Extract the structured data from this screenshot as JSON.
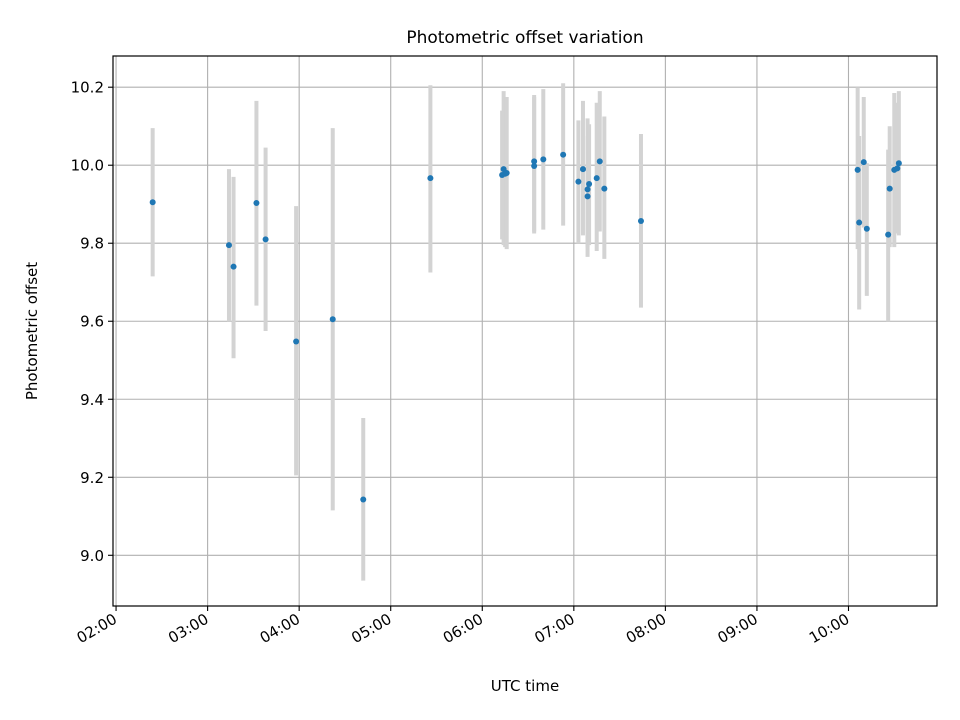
{
  "chart_data": {
    "type": "scatter",
    "title": "Photometric offset variation",
    "xlabel": "UTC time",
    "ylabel": "Photometric offset",
    "x_unit": "UTC time (HH:MM)",
    "xlim": [
      "01:58",
      "10:58"
    ],
    "ylim": [
      8.87,
      10.28
    ],
    "xticks": [
      "02:00",
      "03:00",
      "04:00",
      "05:00",
      "06:00",
      "07:00",
      "08:00",
      "09:00",
      "10:00"
    ],
    "yticks": [
      "9.0",
      "9.2",
      "9.4",
      "9.6",
      "9.8",
      "10.0",
      "10.2"
    ],
    "grid": true,
    "marker_color": "#1f77b4",
    "errorbar_color": "#d3d3d3",
    "points": [
      {
        "x": "02:24",
        "y": 9.905,
        "lo": 9.715,
        "hi": 10.095
      },
      {
        "x": "03:14",
        "y": 9.795,
        "lo": 9.6,
        "hi": 9.99
      },
      {
        "x": "03:17",
        "y": 9.74,
        "lo": 9.505,
        "hi": 9.97
      },
      {
        "x": "03:32",
        "y": 9.903,
        "lo": 9.64,
        "hi": 10.165
      },
      {
        "x": "03:38",
        "y": 9.81,
        "lo": 9.575,
        "hi": 10.045
      },
      {
        "x": "03:58",
        "y": 9.548,
        "lo": 9.205,
        "hi": 9.895
      },
      {
        "x": "04:22",
        "y": 9.605,
        "lo": 9.115,
        "hi": 10.095
      },
      {
        "x": "04:42",
        "y": 9.143,
        "lo": 8.935,
        "hi": 9.352
      },
      {
        "x": "05:26",
        "y": 9.967,
        "lo": 9.725,
        "hi": 10.205
      },
      {
        "x": "06:13",
        "y": 9.975,
        "lo": 9.81,
        "hi": 10.14
      },
      {
        "x": "06:14",
        "y": 9.99,
        "lo": 9.795,
        "hi": 10.19
      },
      {
        "x": "06:15",
        "y": 9.978,
        "lo": 9.79,
        "hi": 10.17
      },
      {
        "x": "06:16",
        "y": 9.98,
        "lo": 9.785,
        "hi": 10.175
      },
      {
        "x": "06:34",
        "y": 10.01,
        "lo": 9.825,
        "hi": 10.18
      },
      {
        "x": "06:34",
        "y": 9.998,
        "lo": 9.83,
        "hi": 10.175
      },
      {
        "x": "06:40",
        "y": 10.015,
        "lo": 9.835,
        "hi": 10.195
      },
      {
        "x": "06:53",
        "y": 10.027,
        "lo": 9.845,
        "hi": 10.21
      },
      {
        "x": "07:03",
        "y": 9.958,
        "lo": 9.8,
        "hi": 10.115
      },
      {
        "x": "07:06",
        "y": 9.99,
        "lo": 9.82,
        "hi": 10.165
      },
      {
        "x": "07:09",
        "y": 9.92,
        "lo": 9.765,
        "hi": 10.075
      },
      {
        "x": "07:09",
        "y": 9.938,
        "lo": 9.79,
        "hi": 10.12
      },
      {
        "x": "07:10",
        "y": 9.952,
        "lo": 9.795,
        "hi": 10.105
      },
      {
        "x": "07:15",
        "y": 9.967,
        "lo": 9.78,
        "hi": 10.16
      },
      {
        "x": "07:17",
        "y": 10.01,
        "lo": 9.83,
        "hi": 10.19
      },
      {
        "x": "07:20",
        "y": 9.94,
        "lo": 9.76,
        "hi": 10.125
      },
      {
        "x": "07:44",
        "y": 9.857,
        "lo": 9.635,
        "hi": 10.08
      },
      {
        "x": "10:06",
        "y": 9.988,
        "lo": 9.785,
        "hi": 10.2
      },
      {
        "x": "10:07",
        "y": 9.853,
        "lo": 9.63,
        "hi": 10.075
      },
      {
        "x": "10:10",
        "y": 10.008,
        "lo": 9.84,
        "hi": 10.175
      },
      {
        "x": "10:12",
        "y": 9.837,
        "lo": 9.665,
        "hi": 10.005
      },
      {
        "x": "10:26",
        "y": 9.822,
        "lo": 9.6,
        "hi": 10.04
      },
      {
        "x": "10:27",
        "y": 9.94,
        "lo": 9.79,
        "hi": 10.1
      },
      {
        "x": "10:30",
        "y": 9.988,
        "lo": 9.79,
        "hi": 10.185
      },
      {
        "x": "10:32",
        "y": 9.992,
        "lo": 9.825,
        "hi": 10.16
      },
      {
        "x": "10:33",
        "y": 10.005,
        "lo": 9.82,
        "hi": 10.19
      }
    ]
  }
}
